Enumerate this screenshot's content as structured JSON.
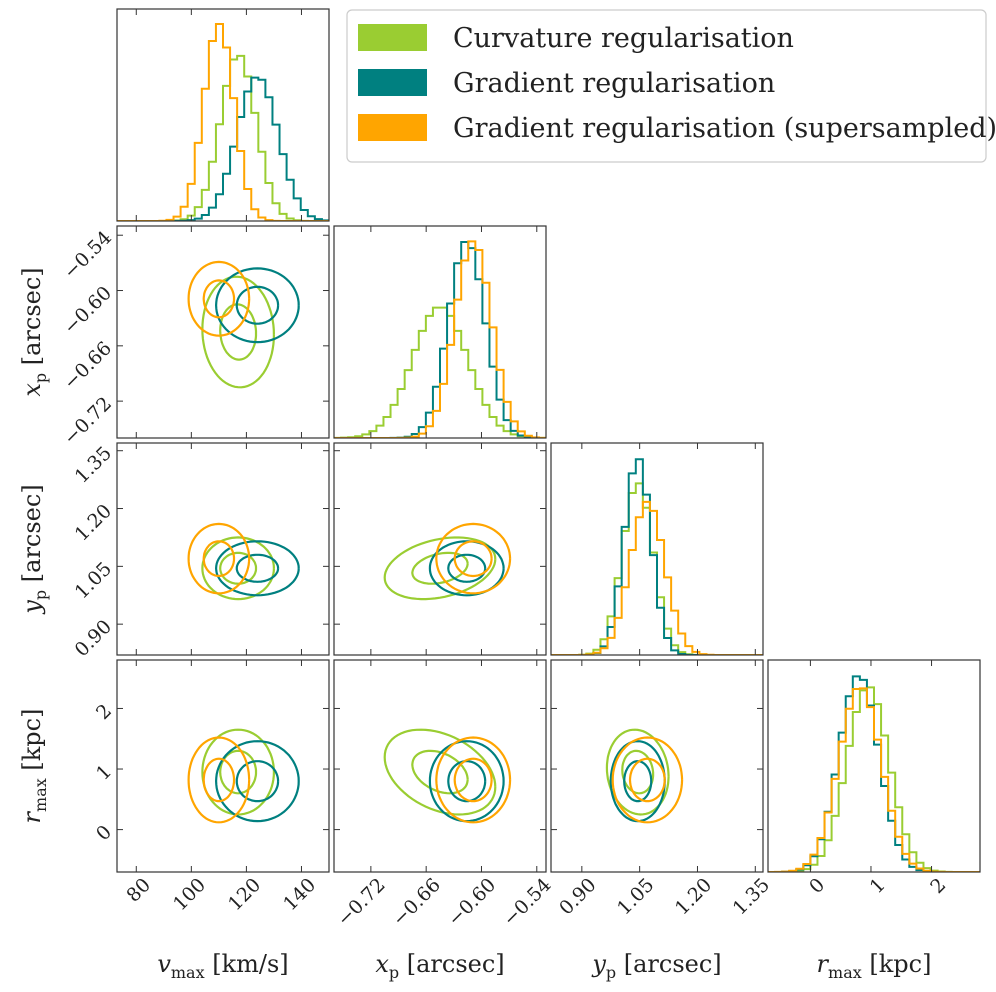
{
  "chart_data": {
    "type": "corner",
    "parameters": [
      {
        "key": "vmax",
        "label": "v_max [km/s]",
        "label_main": "v",
        "label_sub": "max",
        "label_unit": " [km/s]",
        "range": [
          73,
          150
        ],
        "ticks": [
          80,
          100,
          120,
          140
        ],
        "tick_labels": [
          "80",
          "100",
          "120",
          "140"
        ]
      },
      {
        "key": "xp",
        "label": "x_p [arcsec]",
        "label_main": "x",
        "label_sub": "p",
        "label_unit": " [arcsec]",
        "range": [
          -0.76,
          -0.53
        ],
        "ticks": [
          -0.72,
          -0.66,
          -0.6,
          -0.54
        ],
        "tick_labels": [
          "−0.72",
          "−0.66",
          "−0.60",
          "−0.54"
        ]
      },
      {
        "key": "yp",
        "label": "y_p [arcsec]",
        "label_main": "y",
        "label_sub": "p",
        "label_unit": " [arcsec]",
        "range": [
          0.82,
          1.37
        ],
        "ticks": [
          0.9,
          1.05,
          1.2,
          1.35
        ],
        "tick_labels": [
          "0.90",
          "1.05",
          "1.20",
          "1.35"
        ]
      },
      {
        "key": "rmax",
        "label": "r_max [kpc]",
        "label_main": "r",
        "label_sub": "max",
        "label_unit": " [kpc]",
        "range": [
          -0.7,
          2.8
        ],
        "ticks": [
          0,
          1,
          2
        ],
        "tick_labels": [
          "0",
          "1",
          "2"
        ]
      }
    ],
    "series": [
      {
        "name": "Curvature regularisation",
        "color": "#9acd32",
        "mean": [
          117,
          -0.645,
          1.045,
          0.95
        ],
        "sd": [
          6.5,
          0.03,
          0.04,
          0.35
        ],
        "corr": {
          "0_1": -0.05,
          "0_2": 0.0,
          "0_3": 0.0,
          "1_2": 0.3,
          "1_3": -0.35,
          "2_3": -0.1
        }
      },
      {
        "name": "Gradient regularisation",
        "color": "#008080",
        "mean": [
          124,
          -0.616,
          1.045,
          0.8
        ],
        "sd": [
          7.5,
          0.02,
          0.035,
          0.33
        ],
        "corr": {
          "0_1": 0.0,
          "0_2": 0.0,
          "0_3": 0.0,
          "1_2": 0.0,
          "1_3": 0.0,
          "2_3": 0.0
        }
      },
      {
        "name": "Gradient regularisation (supersampled)",
        "color": "#ffa500",
        "mean": [
          110,
          -0.609,
          1.07,
          0.82
        ],
        "sd": [
          5.5,
          0.02,
          0.045,
          0.35
        ],
        "corr": {
          "0_1": 0.0,
          "0_2": 0.0,
          "0_3": 0.0,
          "1_2": 0.0,
          "1_3": 0.0,
          "2_3": 0.0
        }
      }
    ],
    "contour_levels_sigma": [
      1,
      2
    ],
    "legend_placement": "top-right",
    "grid": false
  }
}
